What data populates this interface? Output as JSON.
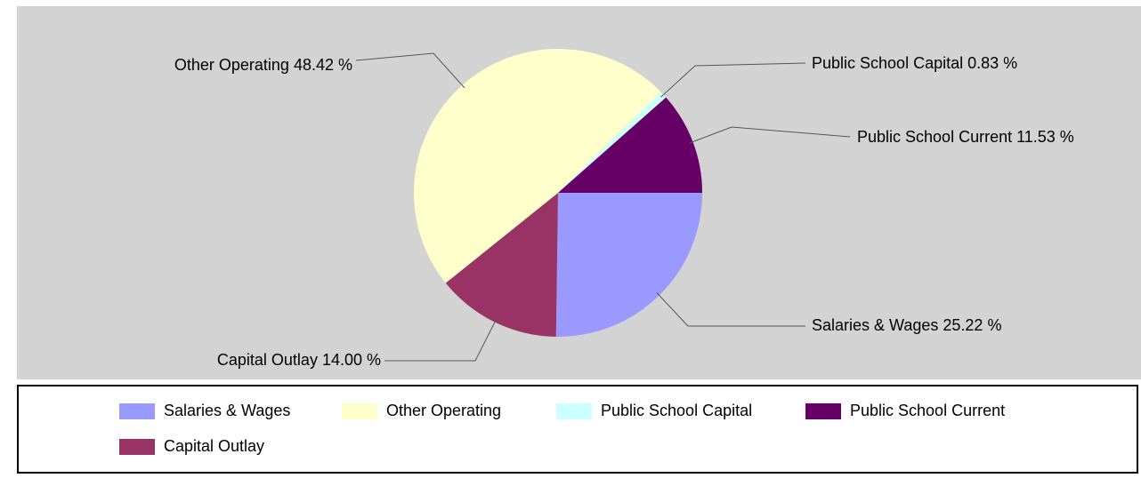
{
  "chart_data": {
    "type": "pie",
    "title": "",
    "slices": [
      {
        "label": "Salaries & Wages",
        "value": 25.22,
        "display": "25.22 %",
        "color": "#9999ff"
      },
      {
        "label": "Capital Outlay",
        "value": 14.0,
        "display": "14.00 %",
        "color": "#993366"
      },
      {
        "label": "Other Operating",
        "value": 48.42,
        "display": "48.42 %",
        "color": "#ffffcc"
      },
      {
        "label": "Public School Capital",
        "value": 0.83,
        "display": "0.83 %",
        "color": "#ccffff"
      },
      {
        "label": "Public School Current",
        "value": 11.53,
        "display": "11.53 %",
        "color": "#660066"
      }
    ],
    "start_angle": "3 o'clock",
    "direction": "clockwise",
    "labels": "outside with leader lines",
    "legend_position": "bottom"
  },
  "colors": {
    "plot_background": "#d3d3d3",
    "leader_line": "#555555",
    "legend_border": "#000000"
  },
  "legend": {
    "items": [
      {
        "label": "Salaries & Wages",
        "color": "#9999ff"
      },
      {
        "label": "Other Operating",
        "color": "#ffffcc"
      },
      {
        "label": "Public School Capital",
        "color": "#ccffff"
      },
      {
        "label": "Public School Current",
        "color": "#660066"
      },
      {
        "label": "Capital Outlay",
        "color": "#993366"
      }
    ]
  }
}
